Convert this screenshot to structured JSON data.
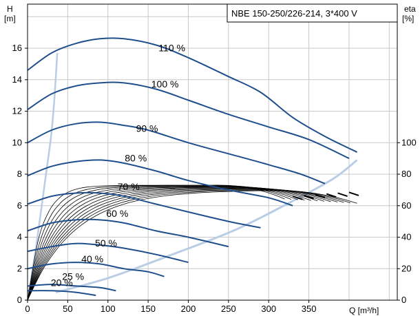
{
  "chart_data": {
    "type": "line",
    "title": "NBE 150-250/226-214, 3*400 V",
    "xlabel": "Q [m³/h]",
    "ylabel_left_name": "H",
    "ylabel_left_unit": "[m]",
    "ylabel_right_name": "eta",
    "ylabel_right_unit": "[%]",
    "xlim": [
      0,
      460
    ],
    "ylim_left": [
      0,
      18.8
    ],
    "ylim_right": [
      0,
      188
    ],
    "x_ticks": [
      "0",
      "50",
      "100",
      "150",
      "200",
      "250",
      "300",
      "350"
    ],
    "y_left_ticks": [
      "0",
      "2",
      "4",
      "6",
      "8",
      "10",
      "12",
      "14",
      "16"
    ],
    "y_right_ticks": [
      "0",
      "20",
      "40",
      "60",
      "80",
      "100"
    ],
    "grid": true,
    "colors": {
      "head_curve": "#1f4e8c",
      "efficiency_curve": "#000000",
      "envelope": "#b9cde4",
      "grid": "#c8c8c8"
    },
    "head_curves": [
      {
        "label": "110 %",
        "label_at": [
          163,
          15.8
        ],
        "points": [
          [
            0,
            14.6
          ],
          [
            30,
            15.7
          ],
          [
            60,
            16.3
          ],
          [
            90,
            16.6
          ],
          [
            120,
            16.6
          ],
          [
            160,
            16.2
          ],
          [
            200,
            15.4
          ],
          [
            250,
            14.2
          ],
          [
            290,
            13.2
          ],
          [
            330,
            11.6
          ],
          [
            370,
            10.4
          ],
          [
            410,
            9.4
          ]
        ]
      },
      {
        "label": "100 %",
        "label_at": [
          154,
          13.5
        ],
        "points": [
          [
            0,
            12.1
          ],
          [
            30,
            13.1
          ],
          [
            60,
            13.6
          ],
          [
            90,
            13.8
          ],
          [
            120,
            13.8
          ],
          [
            160,
            13.4
          ],
          [
            200,
            12.7
          ],
          [
            250,
            11.8
          ],
          [
            300,
            11.0
          ],
          [
            350,
            10.2
          ],
          [
            400,
            9.0
          ]
        ]
      },
      {
        "label": "90 %",
        "label_at": [
          135,
          10.7
        ],
        "points": [
          [
            0,
            10.0
          ],
          [
            30,
            10.8
          ],
          [
            60,
            11.2
          ],
          [
            90,
            11.3
          ],
          [
            120,
            11.1
          ],
          [
            150,
            10.8
          ],
          [
            200,
            10.0
          ],
          [
            250,
            9.3
          ],
          [
            300,
            8.6
          ],
          [
            340,
            8.0
          ],
          [
            370,
            7.4
          ]
        ]
      },
      {
        "label": "80 %",
        "label_at": [
          121,
          8.8
        ],
        "points": [
          [
            0,
            7.9
          ],
          [
            30,
            8.5
          ],
          [
            60,
            8.8
          ],
          [
            90,
            8.9
          ],
          [
            120,
            8.7
          ],
          [
            160,
            8.2
          ],
          [
            200,
            7.6
          ],
          [
            250,
            7.0
          ],
          [
            300,
            6.5
          ],
          [
            330,
            6.0
          ]
        ]
      },
      {
        "label": "70 %",
        "label_at": [
          112,
          7.0
        ],
        "points": [
          [
            0,
            6.1
          ],
          [
            30,
            6.6
          ],
          [
            60,
            6.8
          ],
          [
            90,
            6.8
          ],
          [
            120,
            6.6
          ],
          [
            160,
            6.1
          ],
          [
            200,
            5.6
          ],
          [
            250,
            5.0
          ],
          [
            290,
            4.6
          ]
        ]
      },
      {
        "label": "60 %",
        "label_at": [
          98,
          5.3
        ],
        "points": [
          [
            0,
            4.4
          ],
          [
            30,
            4.9
          ],
          [
            60,
            5.1
          ],
          [
            90,
            5.1
          ],
          [
            120,
            4.9
          ],
          [
            160,
            4.4
          ],
          [
            200,
            4.0
          ],
          [
            250,
            3.4
          ]
        ]
      },
      {
        "label": "50 %",
        "label_at": [
          84,
          3.4
        ],
        "points": [
          [
            0,
            3.1
          ],
          [
            30,
            3.4
          ],
          [
            60,
            3.6
          ],
          [
            90,
            3.5
          ],
          [
            120,
            3.3
          ],
          [
            160,
            2.9
          ],
          [
            200,
            2.4
          ]
        ]
      },
      {
        "label": "40 %",
        "label_at": [
          67,
          2.4
        ],
        "points": [
          [
            0,
            2.0
          ],
          [
            30,
            2.3
          ],
          [
            60,
            2.4
          ],
          [
            90,
            2.3
          ],
          [
            120,
            2.0
          ],
          [
            150,
            1.8
          ],
          [
            170,
            1.5
          ]
        ]
      },
      {
        "label": "25 %",
        "label_at": [
          43,
          1.3
        ],
        "points": [
          [
            0,
            0.9
          ],
          [
            30,
            1.0
          ],
          [
            60,
            0.9
          ],
          [
            90,
            0.8
          ],
          [
            110,
            0.6
          ]
        ]
      },
      {
        "label": "20 %",
        "label_at": [
          29,
          0.9
        ],
        "points": [
          [
            0,
            0.6
          ],
          [
            30,
            0.6
          ],
          [
            60,
            0.5
          ],
          [
            85,
            0.3
          ]
        ]
      }
    ],
    "envelope_points": [
      [
        35,
        0.5
      ],
      [
        100,
        1.4
      ],
      [
        180,
        2.9
      ],
      [
        260,
        4.5
      ],
      [
        330,
        6.3
      ],
      [
        380,
        7.7
      ],
      [
        410,
        8.9
      ]
    ],
    "envelope_left_points": [
      [
        0,
        0
      ],
      [
        8,
        2.5
      ],
      [
        15,
        5.0
      ],
      [
        23,
        8.0
      ],
      [
        29,
        10.3
      ],
      [
        33,
        12.5
      ],
      [
        37,
        15.7
      ]
    ],
    "efficiency_bundle": {
      "count": 12,
      "rise_q_from": 40,
      "rise_q_to": 130,
      "level_from": 68,
      "level_to": 73,
      "end_q_from": 320,
      "end_q_to": 410
    }
  }
}
